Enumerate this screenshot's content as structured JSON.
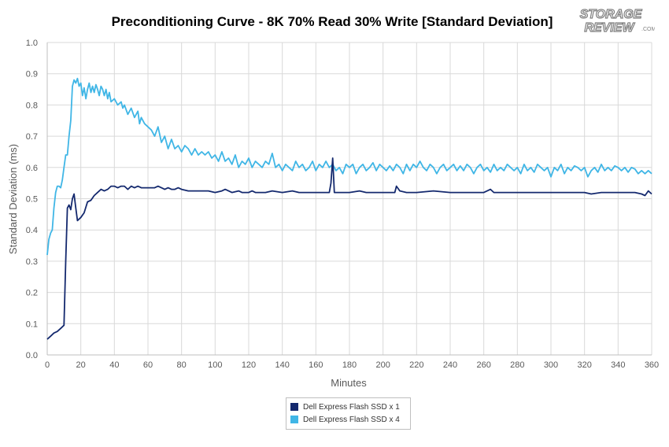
{
  "chart_data": {
    "type": "line",
    "title": "Preconditioning Curve - 8K 70% Read 30% Write [Standard Deviation]",
    "xlabel": "Minutes",
    "ylabel": "Standard Deviation (ms)",
    "xlim": [
      0,
      360
    ],
    "ylim": [
      0,
      1.0
    ],
    "xticks": [
      0,
      20,
      40,
      60,
      80,
      100,
      120,
      140,
      160,
      180,
      200,
      220,
      240,
      260,
      280,
      300,
      320,
      340,
      360
    ],
    "yticks": [
      "0.0",
      "0.1",
      "0.2",
      "0.3",
      "0.4",
      "0.5",
      "0.6",
      "0.7",
      "0.8",
      "0.9",
      "1.0"
    ],
    "grid": true,
    "legend_position": "bottom",
    "series": [
      {
        "name": "Dell Express Flash SSD x 1",
        "color": "#14296e",
        "points": [
          [
            0,
            0.05
          ],
          [
            2,
            0.06
          ],
          [
            4,
            0.07
          ],
          [
            6,
            0.075
          ],
          [
            8,
            0.085
          ],
          [
            10,
            0.095
          ],
          [
            11,
            0.3
          ],
          [
            12,
            0.47
          ],
          [
            13,
            0.48
          ],
          [
            14,
            0.465
          ],
          [
            15,
            0.5
          ],
          [
            16,
            0.515
          ],
          [
            17,
            0.47
          ],
          [
            18,
            0.43
          ],
          [
            20,
            0.44
          ],
          [
            22,
            0.455
          ],
          [
            24,
            0.49
          ],
          [
            26,
            0.495
          ],
          [
            28,
            0.51
          ],
          [
            30,
            0.52
          ],
          [
            32,
            0.53
          ],
          [
            34,
            0.525
          ],
          [
            36,
            0.53
          ],
          [
            38,
            0.54
          ],
          [
            40,
            0.54
          ],
          [
            42,
            0.535
          ],
          [
            44,
            0.54
          ],
          [
            46,
            0.54
          ],
          [
            48,
            0.53
          ],
          [
            50,
            0.54
          ],
          [
            52,
            0.535
          ],
          [
            54,
            0.54
          ],
          [
            56,
            0.535
          ],
          [
            58,
            0.535
          ],
          [
            60,
            0.535
          ],
          [
            62,
            0.535
          ],
          [
            64,
            0.535
          ],
          [
            66,
            0.54
          ],
          [
            68,
            0.535
          ],
          [
            70,
            0.53
          ],
          [
            72,
            0.535
          ],
          [
            74,
            0.53
          ],
          [
            76,
            0.53
          ],
          [
            78,
            0.535
          ],
          [
            80,
            0.53
          ],
          [
            84,
            0.525
          ],
          [
            88,
            0.525
          ],
          [
            92,
            0.525
          ],
          [
            96,
            0.525
          ],
          [
            100,
            0.52
          ],
          [
            104,
            0.525
          ],
          [
            106,
            0.53
          ],
          [
            110,
            0.52
          ],
          [
            114,
            0.525
          ],
          [
            116,
            0.52
          ],
          [
            120,
            0.52
          ],
          [
            122,
            0.525
          ],
          [
            124,
            0.52
          ],
          [
            130,
            0.52
          ],
          [
            134,
            0.525
          ],
          [
            140,
            0.52
          ],
          [
            146,
            0.525
          ],
          [
            150,
            0.52
          ],
          [
            160,
            0.52
          ],
          [
            164,
            0.52
          ],
          [
            168,
            0.52
          ],
          [
            169,
            0.55
          ],
          [
            170,
            0.63
          ],
          [
            171,
            0.52
          ],
          [
            174,
            0.52
          ],
          [
            180,
            0.52
          ],
          [
            186,
            0.525
          ],
          [
            190,
            0.52
          ],
          [
            200,
            0.52
          ],
          [
            207,
            0.52
          ],
          [
            208,
            0.54
          ],
          [
            210,
            0.525
          ],
          [
            214,
            0.52
          ],
          [
            220,
            0.52
          ],
          [
            230,
            0.525
          ],
          [
            240,
            0.52
          ],
          [
            250,
            0.52
          ],
          [
            260,
            0.52
          ],
          [
            264,
            0.53
          ],
          [
            266,
            0.52
          ],
          [
            280,
            0.52
          ],
          [
            290,
            0.52
          ],
          [
            300,
            0.52
          ],
          [
            310,
            0.52
          ],
          [
            320,
            0.52
          ],
          [
            324,
            0.515
          ],
          [
            330,
            0.52
          ],
          [
            340,
            0.52
          ],
          [
            350,
            0.52
          ],
          [
            354,
            0.515
          ],
          [
            356,
            0.51
          ],
          [
            358,
            0.525
          ],
          [
            360,
            0.515
          ]
        ]
      },
      {
        "name": "Dell Express Flash SSD x 4",
        "color": "#40b6e6",
        "points": [
          [
            0,
            0.32
          ],
          [
            1,
            0.37
          ],
          [
            2,
            0.39
          ],
          [
            3,
            0.4
          ],
          [
            4,
            0.47
          ],
          [
            5,
            0.52
          ],
          [
            6,
            0.54
          ],
          [
            7,
            0.54
          ],
          [
            8,
            0.535
          ],
          [
            9,
            0.56
          ],
          [
            10,
            0.6
          ],
          [
            11,
            0.64
          ],
          [
            12,
            0.64
          ],
          [
            13,
            0.7
          ],
          [
            14,
            0.75
          ],
          [
            15,
            0.86
          ],
          [
            16,
            0.88
          ],
          [
            17,
            0.87
          ],
          [
            18,
            0.885
          ],
          [
            19,
            0.86
          ],
          [
            20,
            0.87
          ],
          [
            21,
            0.83
          ],
          [
            22,
            0.855
          ],
          [
            23,
            0.82
          ],
          [
            24,
            0.85
          ],
          [
            25,
            0.87
          ],
          [
            26,
            0.84
          ],
          [
            27,
            0.86
          ],
          [
            28,
            0.84
          ],
          [
            29,
            0.865
          ],
          [
            30,
            0.85
          ],
          [
            31,
            0.83
          ],
          [
            32,
            0.86
          ],
          [
            33,
            0.85
          ],
          [
            34,
            0.83
          ],
          [
            35,
            0.85
          ],
          [
            36,
            0.82
          ],
          [
            37,
            0.84
          ],
          [
            38,
            0.81
          ],
          [
            40,
            0.82
          ],
          [
            42,
            0.8
          ],
          [
            44,
            0.81
          ],
          [
            45,
            0.79
          ],
          [
            46,
            0.8
          ],
          [
            48,
            0.77
          ],
          [
            50,
            0.79
          ],
          [
            52,
            0.76
          ],
          [
            54,
            0.78
          ],
          [
            55,
            0.74
          ],
          [
            56,
            0.76
          ],
          [
            58,
            0.74
          ],
          [
            60,
            0.73
          ],
          [
            62,
            0.72
          ],
          [
            64,
            0.7
          ],
          [
            66,
            0.73
          ],
          [
            68,
            0.68
          ],
          [
            70,
            0.7
          ],
          [
            72,
            0.66
          ],
          [
            74,
            0.69
          ],
          [
            76,
            0.66
          ],
          [
            78,
            0.67
          ],
          [
            80,
            0.65
          ],
          [
            82,
            0.67
          ],
          [
            84,
            0.66
          ],
          [
            86,
            0.64
          ],
          [
            88,
            0.66
          ],
          [
            90,
            0.64
          ],
          [
            92,
            0.65
          ],
          [
            94,
            0.64
          ],
          [
            96,
            0.65
          ],
          [
            98,
            0.63
          ],
          [
            100,
            0.64
          ],
          [
            102,
            0.62
          ],
          [
            104,
            0.65
          ],
          [
            106,
            0.62
          ],
          [
            108,
            0.63
          ],
          [
            110,
            0.61
          ],
          [
            112,
            0.64
          ],
          [
            114,
            0.6
          ],
          [
            116,
            0.62
          ],
          [
            118,
            0.61
          ],
          [
            120,
            0.63
          ],
          [
            122,
            0.6
          ],
          [
            124,
            0.62
          ],
          [
            126,
            0.61
          ],
          [
            128,
            0.6
          ],
          [
            130,
            0.62
          ],
          [
            132,
            0.61
          ],
          [
            134,
            0.645
          ],
          [
            136,
            0.6
          ],
          [
            138,
            0.61
          ],
          [
            140,
            0.59
          ],
          [
            142,
            0.61
          ],
          [
            144,
            0.6
          ],
          [
            146,
            0.59
          ],
          [
            148,
            0.62
          ],
          [
            150,
            0.6
          ],
          [
            152,
            0.61
          ],
          [
            154,
            0.59
          ],
          [
            156,
            0.6
          ],
          [
            158,
            0.62
          ],
          [
            160,
            0.59
          ],
          [
            162,
            0.61
          ],
          [
            164,
            0.6
          ],
          [
            166,
            0.62
          ],
          [
            168,
            0.6
          ],
          [
            170,
            0.61
          ],
          [
            172,
            0.59
          ],
          [
            174,
            0.6
          ],
          [
            176,
            0.58
          ],
          [
            178,
            0.61
          ],
          [
            180,
            0.6
          ],
          [
            182,
            0.61
          ],
          [
            184,
            0.58
          ],
          [
            186,
            0.6
          ],
          [
            188,
            0.61
          ],
          [
            190,
            0.59
          ],
          [
            192,
            0.6
          ],
          [
            194,
            0.615
          ],
          [
            196,
            0.59
          ],
          [
            198,
            0.61
          ],
          [
            200,
            0.6
          ],
          [
            202,
            0.59
          ],
          [
            204,
            0.605
          ],
          [
            206,
            0.59
          ],
          [
            208,
            0.61
          ],
          [
            210,
            0.6
          ],
          [
            212,
            0.58
          ],
          [
            214,
            0.61
          ],
          [
            216,
            0.59
          ],
          [
            218,
            0.61
          ],
          [
            220,
            0.6
          ],
          [
            222,
            0.62
          ],
          [
            224,
            0.6
          ],
          [
            226,
            0.59
          ],
          [
            228,
            0.61
          ],
          [
            230,
            0.6
          ],
          [
            232,
            0.58
          ],
          [
            234,
            0.6
          ],
          [
            236,
            0.61
          ],
          [
            238,
            0.59
          ],
          [
            240,
            0.6
          ],
          [
            242,
            0.61
          ],
          [
            244,
            0.59
          ],
          [
            246,
            0.605
          ],
          [
            248,
            0.59
          ],
          [
            250,
            0.61
          ],
          [
            252,
            0.6
          ],
          [
            254,
            0.58
          ],
          [
            256,
            0.6
          ],
          [
            258,
            0.61
          ],
          [
            260,
            0.59
          ],
          [
            262,
            0.6
          ],
          [
            264,
            0.585
          ],
          [
            266,
            0.61
          ],
          [
            268,
            0.59
          ],
          [
            270,
            0.6
          ],
          [
            272,
            0.59
          ],
          [
            274,
            0.61
          ],
          [
            276,
            0.6
          ],
          [
            278,
            0.59
          ],
          [
            280,
            0.6
          ],
          [
            282,
            0.58
          ],
          [
            284,
            0.61
          ],
          [
            286,
            0.59
          ],
          [
            288,
            0.6
          ],
          [
            290,
            0.585
          ],
          [
            292,
            0.61
          ],
          [
            294,
            0.6
          ],
          [
            296,
            0.59
          ],
          [
            298,
            0.6
          ],
          [
            300,
            0.57
          ],
          [
            302,
            0.6
          ],
          [
            304,
            0.59
          ],
          [
            306,
            0.61
          ],
          [
            308,
            0.58
          ],
          [
            310,
            0.6
          ],
          [
            312,
            0.59
          ],
          [
            314,
            0.605
          ],
          [
            316,
            0.6
          ],
          [
            318,
            0.59
          ],
          [
            320,
            0.6
          ],
          [
            322,
            0.57
          ],
          [
            324,
            0.59
          ],
          [
            326,
            0.6
          ],
          [
            328,
            0.585
          ],
          [
            330,
            0.61
          ],
          [
            332,
            0.59
          ],
          [
            334,
            0.6
          ],
          [
            336,
            0.59
          ],
          [
            338,
            0.605
          ],
          [
            340,
            0.6
          ],
          [
            342,
            0.59
          ],
          [
            344,
            0.6
          ],
          [
            346,
            0.585
          ],
          [
            348,
            0.6
          ],
          [
            350,
            0.595
          ],
          [
            352,
            0.58
          ],
          [
            354,
            0.59
          ],
          [
            356,
            0.58
          ],
          [
            358,
            0.59
          ],
          [
            360,
            0.58
          ]
        ]
      }
    ]
  }
}
